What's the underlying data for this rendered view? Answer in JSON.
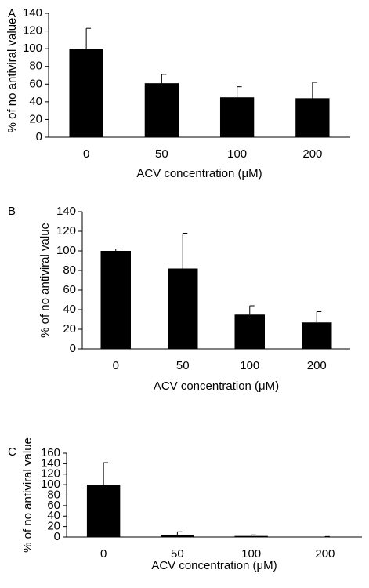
{
  "chart_data": [
    {
      "type": "bar",
      "panel_label": "A",
      "categories": [
        "0",
        "50",
        "100",
        "200"
      ],
      "values": [
        100,
        61,
        45,
        44
      ],
      "errors": [
        23,
        10,
        12,
        18
      ],
      "color": "#000000",
      "ylim": [
        0,
        140
      ],
      "yticks": [
        0,
        20,
        40,
        60,
        80,
        100,
        120,
        140
      ],
      "ylabel": "% of no antiviral value",
      "xlabel": "ACV concentration (μM)"
    },
    {
      "type": "bar",
      "panel_label": "B",
      "categories": [
        "0",
        "50",
        "100",
        "200"
      ],
      "values": [
        100,
        82,
        35,
        27
      ],
      "errors": [
        2,
        36,
        9,
        11
      ],
      "color": "#000000",
      "ylim": [
        0,
        140
      ],
      "yticks": [
        0,
        20,
        40,
        60,
        80,
        100,
        120,
        140
      ],
      "ylabel": "% of no antiviral value",
      "xlabel": "ACV concentration (μM)"
    },
    {
      "type": "bar",
      "panel_label": "C",
      "categories": [
        "0",
        "50",
        "100",
        "200"
      ],
      "values": [
        100,
        4,
        2,
        0.5
      ],
      "errors": [
        42,
        6,
        2,
        0.5
      ],
      "color": "#000000",
      "ylim": [
        0,
        160
      ],
      "yticks": [
        0,
        20,
        40,
        60,
        80,
        100,
        120,
        140,
        160
      ],
      "ylabel": "% of no antiviral value",
      "xlabel": "ACV concentration (μM)"
    }
  ]
}
